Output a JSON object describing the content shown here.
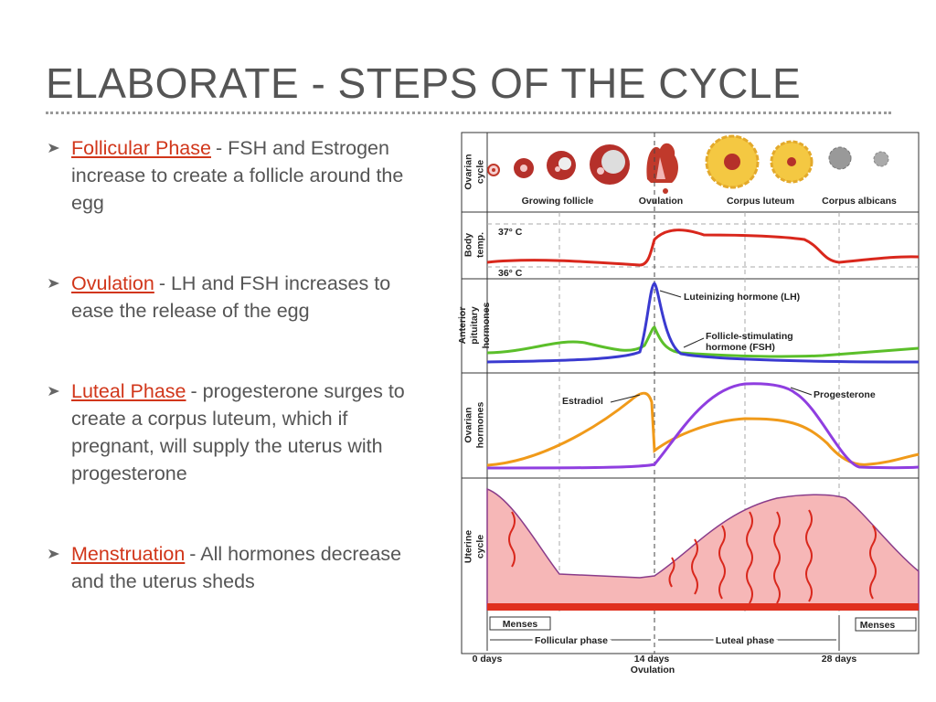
{
  "header": {
    "title": "ELABORATE - STEPS OF THE CYCLE"
  },
  "bullets": [
    {
      "term": "Follicular Phase",
      "desc": "- FSH and Estrogen increase to create a follicle around the egg"
    },
    {
      "term": "Ovulation",
      "desc": "- LH and FSH increases to ease the release of the egg"
    },
    {
      "term": "Luteal Phase",
      "desc": "- progesterone surges to create a corpus luteum, which if pregnant, will supply the uterus with progesterone"
    },
    {
      "term": "Menstruation",
      "desc": "- All hormones decrease and the uterus sheds"
    }
  ],
  "diagram": {
    "row_labels": [
      [
        "Ovarian",
        "cycle"
      ],
      [
        "Body",
        "temp."
      ],
      [
        "Anterior",
        "pituitary",
        "hormones"
      ],
      [
        "Ovarian",
        "hormones"
      ],
      [
        "Uterine",
        "cycle"
      ]
    ],
    "stage_labels": [
      "Growing follicle",
      "Ovulation",
      "Corpus luteum",
      "Corpus albicans"
    ],
    "temps": [
      "37° C",
      "36° C"
    ],
    "lh_label": "Luteinizing hormone (LH)",
    "fsh_label": [
      "Follicle-stimulating",
      "hormone (FSH)"
    ],
    "estradiol_label": "Estradiol",
    "progesterone_label": "Progesterone",
    "menses": [
      "Menses",
      "Menses"
    ],
    "phases": [
      "Follicular phase",
      "Luteal phase"
    ],
    "days": [
      "0 days",
      "14 days",
      "28 days"
    ],
    "ovulation": "Ovulation"
  }
}
